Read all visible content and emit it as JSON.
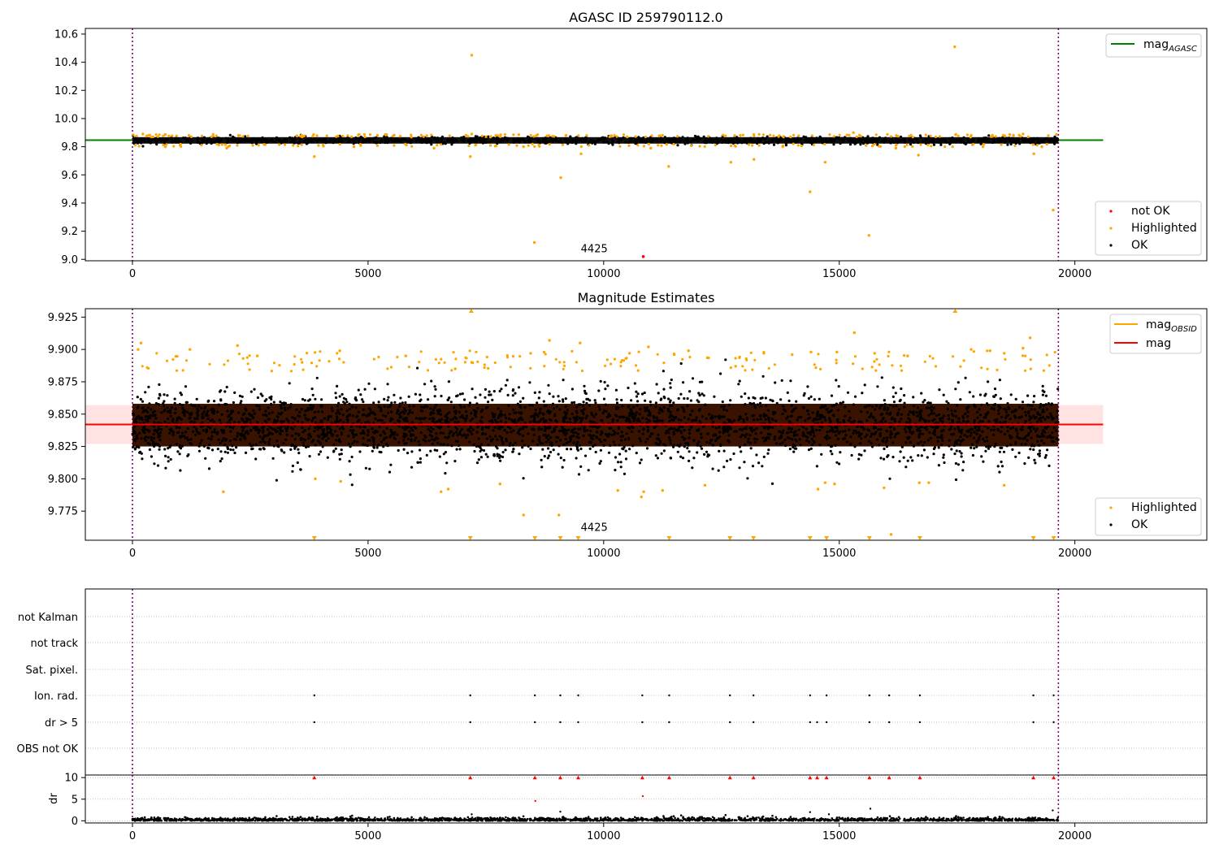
{
  "figure": {
    "background": "#ffffff"
  },
  "colors": {
    "ok": "#000000",
    "highlighted": "#ffa500",
    "not_ok": "#ff0000",
    "agasc_line": "#008000",
    "mag_line": "#ff0000",
    "obsid_line": "#ffa500",
    "band": "#ffcccc",
    "time_marker": "#800080",
    "grid": "#b0b0b0",
    "body_fill": "#3a1200"
  },
  "chart_data": [
    {
      "type": "scatter",
      "title": "AGASC ID 259790112.0",
      "xlim": [
        -1000,
        22800
      ],
      "ylim": [
        8.99,
        10.64
      ],
      "x_ticks": [
        "0",
        "5000",
        "10000",
        "15000",
        "20000"
      ],
      "y_ticks": [
        "9.0",
        "9.2",
        "9.4",
        "9.6",
        "9.8",
        "10.0",
        "10.2",
        "10.4",
        "10.6"
      ],
      "vlines": [
        0,
        19650
      ],
      "annotations": [
        {
          "text": "4425",
          "x": 9800,
          "y": 9.04
        }
      ],
      "hline": {
        "name": "mag",
        "sub": "AGASC",
        "y": 9.847,
        "x_range": [
          -1000,
          20600
        ]
      },
      "legends": [
        {
          "position": "top-right",
          "entries": [
            {
              "label": "mag",
              "sub": "AGASC",
              "marker": "line",
              "color": "#008000"
            }
          ]
        },
        {
          "position": "lower-right",
          "entries": [
            {
              "label": "not OK",
              "marker": "dot",
              "color": "#ff0000"
            },
            {
              "label": "Highlighted",
              "marker": "dot",
              "color": "#ffa500"
            },
            {
              "label": "OK",
              "marker": "dot",
              "color": "#000000"
            }
          ]
        }
      ],
      "series": [
        {
          "name": "OK",
          "x_range": [
            0,
            19650
          ],
          "band": [
            9.82,
            9.87
          ],
          "color": "#000000"
        },
        {
          "name": "Highlighted",
          "color": "#ffa500",
          "points": [
            [
              7200,
              10.45
            ],
            [
              17450,
              10.51
            ],
            [
              220,
              9.89
            ],
            [
              1200,
              9.88
            ],
            [
              2250,
              9.88
            ],
            [
              3600,
              9.87
            ],
            [
              5200,
              9.88
            ],
            [
              7200,
              9.89
            ],
            [
              9200,
              9.88
            ],
            [
              10500,
              9.87
            ],
            [
              12900,
              9.88
            ],
            [
              15300,
              9.9
            ],
            [
              17800,
              9.88
            ],
            [
              18900,
              9.89
            ],
            [
              3860,
              9.73
            ],
            [
              7170,
              9.73
            ],
            [
              9520,
              9.75
            ],
            [
              11380,
              9.66
            ],
            [
              12700,
              9.69
            ],
            [
              13190,
              9.71
            ],
            [
              14700,
              9.69
            ],
            [
              16680,
              9.74
            ],
            [
              19130,
              9.75
            ],
            [
              9090,
              9.58
            ],
            [
              14380,
              9.48
            ],
            [
              19540,
              9.35
            ],
            [
              15630,
              9.17
            ],
            [
              8530,
              9.12
            ],
            [
              700,
              9.8
            ],
            [
              2000,
              9.79
            ],
            [
              4700,
              9.8
            ],
            [
              6400,
              9.79
            ],
            [
              8300,
              9.8
            ],
            [
              11000,
              9.79
            ],
            [
              13800,
              9.8
            ],
            [
              16200,
              9.79
            ],
            [
              19300,
              9.8
            ]
          ]
        },
        {
          "name": "not OK",
          "color": "#ff0000",
          "points": [
            [
              10840,
              9.02
            ]
          ]
        }
      ]
    },
    {
      "type": "scatter",
      "title": "Magnitude Estimates",
      "xlim": [
        -1000,
        22800
      ],
      "ylim": [
        9.7525,
        9.9315
      ],
      "x_ticks": [
        "0",
        "5000",
        "10000",
        "15000",
        "20000"
      ],
      "y_ticks": [
        "9.775",
        "9.800",
        "9.825",
        "9.850",
        "9.875",
        "9.900",
        "9.925"
      ],
      "vlines": [
        0,
        19650
      ],
      "annotations": [
        {
          "text": "4425",
          "x": 9800,
          "y": 9.7585
        }
      ],
      "hline": {
        "name": "mag",
        "y": 9.842,
        "band": [
          9.827,
          9.857
        ],
        "x_range": [
          -1000,
          20600
        ]
      },
      "obsid_segments": [
        {
          "x": [
            0,
            19650
          ],
          "y": 9.842
        }
      ],
      "legends": [
        {
          "position": "top-right",
          "entries": [
            {
              "label": "mag",
              "sub": "OBSID",
              "marker": "line",
              "color": "#ffa500"
            },
            {
              "label": "mag",
              "marker": "line",
              "color": "#ff0000"
            }
          ]
        },
        {
          "position": "lower-right",
          "entries": [
            {
              "label": "Highlighted",
              "marker": "dot",
              "color": "#ffa500"
            },
            {
              "label": "OK",
              "marker": "dot",
              "color": "#000000"
            }
          ]
        }
      ],
      "series": [
        {
          "name": "OK",
          "x_range": [
            0,
            19650
          ],
          "core": [
            9.825,
            9.858
          ],
          "spread": [
            9.8,
            9.885
          ],
          "color": "#000000"
        },
        {
          "name": "Highlighted",
          "color": "#ffa500",
          "points": [
            [
              120,
              9.9
            ],
            [
              180,
              9.905
            ],
            [
              1220,
              9.9
            ],
            [
              2230,
              9.903
            ],
            [
              2650,
              9.895
            ],
            [
              3600,
              9.89
            ],
            [
              4400,
              9.899
            ],
            [
              5800,
              9.895
            ],
            [
              6850,
              9.885
            ],
            [
              7200,
              9.89
            ],
            [
              8450,
              9.897
            ],
            [
              8850,
              9.907
            ],
            [
              9500,
              9.905
            ],
            [
              10550,
              9.897
            ],
            [
              10950,
              9.902
            ],
            [
              11800,
              9.899
            ],
            [
              12800,
              9.887
            ],
            [
              13400,
              9.897
            ],
            [
              14000,
              9.896
            ],
            [
              14400,
              9.898
            ],
            [
              14950,
              9.898
            ],
            [
              15320,
              9.913
            ],
            [
              15750,
              9.897
            ],
            [
              16450,
              9.895
            ],
            [
              17800,
              9.9
            ],
            [
              18200,
              9.899
            ],
            [
              18500,
              9.897
            ],
            [
              18900,
              9.901
            ],
            [
              19050,
              9.909
            ],
            [
              1930,
              9.79
            ],
            [
              3880,
              9.8
            ],
            [
              4420,
              9.798
            ],
            [
              6550,
              9.79
            ],
            [
              6700,
              9.792
            ],
            [
              7800,
              9.796
            ],
            [
              8300,
              9.772
            ],
            [
              9050,
              9.772
            ],
            [
              10300,
              9.791
            ],
            [
              10800,
              9.786
            ],
            [
              10850,
              9.79
            ],
            [
              11250,
              9.791
            ],
            [
              12150,
              9.795
            ],
            [
              14550,
              9.792
            ],
            [
              14700,
              9.797
            ],
            [
              14900,
              9.796
            ],
            [
              15950,
              9.793
            ],
            [
              16100,
              9.757
            ],
            [
              16700,
              9.797
            ],
            [
              16900,
              9.797
            ],
            [
              18500,
              9.795
            ]
          ]
        },
        {
          "name": "Highlighted (clipped)",
          "color": "#ffa500",
          "upper_x": [
            7190,
            17460
          ],
          "lower_x": [
            3860,
            7170,
            8540,
            9080,
            9460,
            11390,
            12680,
            13180,
            14380,
            14730,
            15640,
            16710,
            19120,
            19550
          ]
        }
      ]
    },
    {
      "type": "scatter",
      "xlim": [
        -1000,
        22800
      ],
      "x_ticks": [
        "0",
        "5000",
        "10000",
        "15000",
        "20000"
      ],
      "vlines": [
        0,
        19650
      ],
      "flag_rows": [
        "not Kalman",
        "not track",
        "Sat. pixel.",
        "Ion. rad.",
        "dr > 5",
        "OBS not OK"
      ],
      "flag_points": {
        "Ion. rad.": [
          3860,
          7170,
          8540,
          9080,
          9460,
          10820,
          11390,
          12680,
          13180,
          14380,
          14730,
          15640,
          16060,
          16710,
          19120,
          19550
        ],
        "dr > 5": [
          3860,
          7170,
          8540,
          9080,
          9460,
          10820,
          11390,
          12680,
          13180,
          14380,
          14530,
          14730,
          15640,
          16060,
          16710,
          19120,
          19550
        ]
      },
      "dr_panel": {
        "ylabel": "dr",
        "y_ticks": [
          "0",
          "5",
          "10"
        ],
        "ylim": [
          -0.5,
          10.6
        ],
        "clipped_x": [
          3860,
          7170,
          8540,
          9080,
          9460,
          10820,
          11390,
          12680,
          13180,
          14380,
          14530,
          14730,
          15640,
          16060,
          16710,
          19120,
          19550
        ],
        "outliers": [
          [
            8550,
            4.6
          ],
          [
            10830,
            5.7
          ],
          [
            15660,
            2.8
          ],
          [
            9080,
            2.1
          ],
          [
            14380,
            2.0
          ],
          [
            19530,
            2.4
          ],
          [
            7200,
            1.5
          ],
          [
            14780,
            1.5
          ]
        ],
        "baseline": [
          0,
          1.2
        ]
      }
    }
  ]
}
